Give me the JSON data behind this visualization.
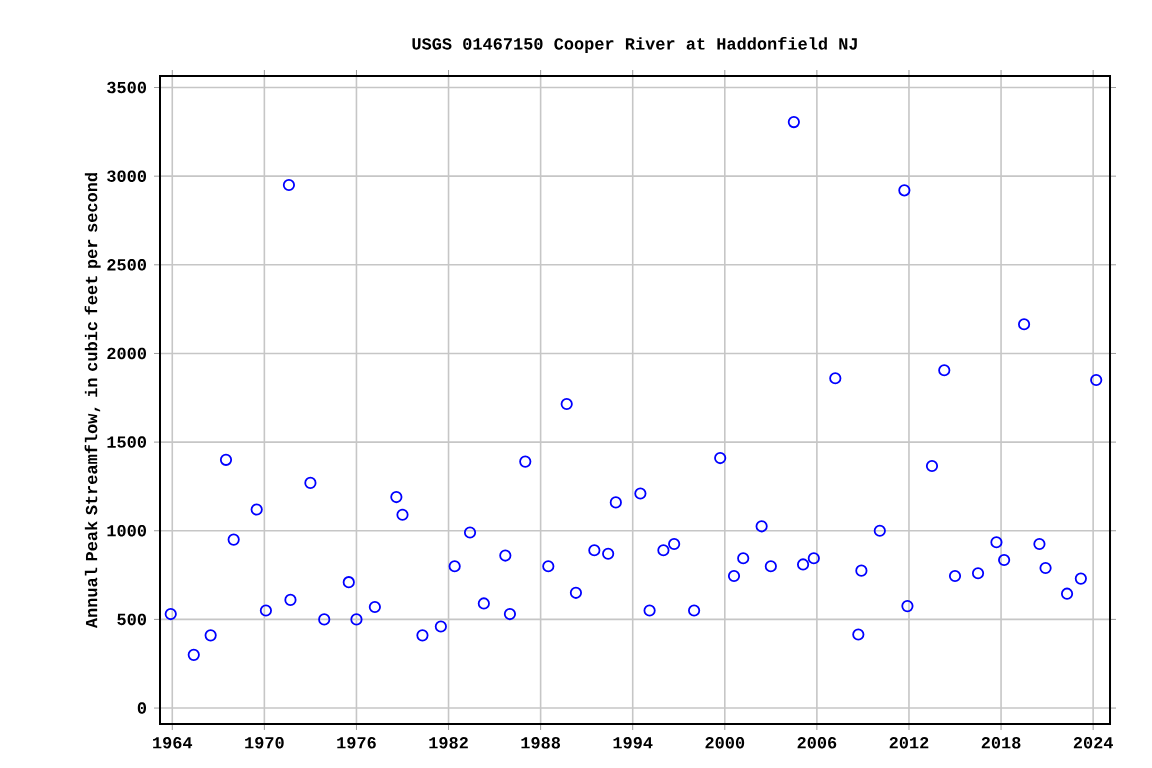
{
  "chart_data": {
    "type": "scatter",
    "title": "USGS 01467150 Cooper River at Haddonfield NJ",
    "ylabel": "Annual Peak Streamflow, in cubic feet per second",
    "x": [
      1963.9,
      1965.4,
      1966.5,
      1967.5,
      1968.0,
      1969.5,
      1970.1,
      1971.6,
      1971.7,
      1973.0,
      1973.9,
      1975.5,
      1976.0,
      1977.2,
      1978.6,
      1979.0,
      1980.3,
      1981.5,
      1982.4,
      1983.4,
      1984.3,
      1985.7,
      1986.0,
      1987.0,
      1988.5,
      1989.7,
      1990.3,
      1991.5,
      1992.4,
      1992.9,
      1994.5,
      1995.1,
      1996.0,
      1996.7,
      1998.0,
      1999.7,
      2000.6,
      2001.2,
      2002.4,
      2003.0,
      2004.5,
      2005.1,
      2005.8,
      2007.2,
      2008.7,
      2008.9,
      2010.1,
      2011.7,
      2011.9,
      2013.5,
      2014.3,
      2015.0,
      2016.5,
      2017.7,
      2018.2,
      2019.5,
      2020.5,
      2020.9,
      2022.3,
      2023.2,
      2024.2
    ],
    "values": [
      530,
      300,
      410,
      1400,
      950,
      1120,
      550,
      2950,
      610,
      1270,
      500,
      710,
      500,
      570,
      1190,
      1090,
      410,
      460,
      800,
      990,
      590,
      860,
      530,
      1390,
      800,
      1715,
      650,
      890,
      870,
      1160,
      1210,
      550,
      890,
      925,
      550,
      1410,
      745,
      845,
      1025,
      800,
      3305,
      810,
      845,
      1860,
      415,
      775,
      1000,
      2920,
      575,
      1365,
      1905,
      745,
      760,
      935,
      835,
      2165,
      925,
      790,
      645,
      730,
      1850
    ],
    "color": "#0000ff",
    "marker": "circle",
    "grid": true,
    "xlim": [
      1963.2,
      2025.1
    ],
    "xticks": [
      1964,
      1970,
      1976,
      1982,
      1988,
      1994,
      2000,
      2006,
      2012,
      2018,
      2024
    ],
    "ylim": [
      -90,
      3565
    ],
    "yticks": [
      0,
      500,
      1000,
      1500,
      2000,
      2500,
      3000,
      3500
    ]
  }
}
